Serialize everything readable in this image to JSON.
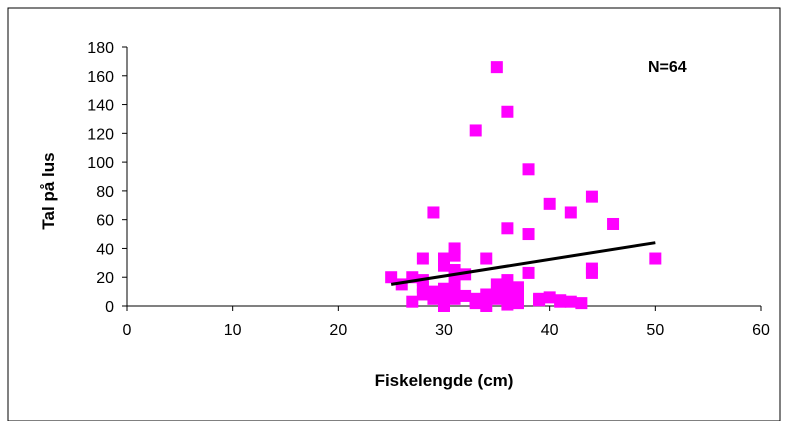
{
  "chart_data": {
    "type": "scatter",
    "xlabel": "Fiskelengde (cm)",
    "ylabel": "Tal på lus",
    "annotation": "N=64",
    "xlim": [
      0,
      60
    ],
    "ylim": [
      0,
      180
    ],
    "x_ticks": [
      0,
      10,
      20,
      30,
      40,
      50,
      60
    ],
    "y_ticks": [
      0,
      20,
      40,
      60,
      80,
      100,
      120,
      140,
      160,
      180
    ],
    "grid": false,
    "legend": "none",
    "marker_color": "#FF00FF",
    "trend_color": "#000000",
    "points": [
      [
        25,
        20
      ],
      [
        26,
        15
      ],
      [
        27,
        20
      ],
      [
        27,
        3
      ],
      [
        28,
        33
      ],
      [
        28,
        13
      ],
      [
        28,
        8
      ],
      [
        28,
        18
      ],
      [
        29,
        65
      ],
      [
        29,
        5
      ],
      [
        29,
        10
      ],
      [
        30,
        33
      ],
      [
        30,
        28
      ],
      [
        30,
        12
      ],
      [
        30,
        7
      ],
      [
        30,
        0
      ],
      [
        31,
        40
      ],
      [
        31,
        35
      ],
      [
        31,
        25
      ],
      [
        31,
        18
      ],
      [
        31,
        10
      ],
      [
        31,
        5
      ],
      [
        32,
        22
      ],
      [
        32,
        7
      ],
      [
        33,
        122
      ],
      [
        33,
        5
      ],
      [
        33,
        2
      ],
      [
        34,
        33
      ],
      [
        34,
        8
      ],
      [
        34,
        4
      ],
      [
        34,
        0
      ],
      [
        35,
        166
      ],
      [
        35,
        15
      ],
      [
        35,
        8
      ],
      [
        35,
        5
      ],
      [
        36,
        135
      ],
      [
        36,
        54
      ],
      [
        36,
        18
      ],
      [
        36,
        12
      ],
      [
        36,
        5
      ],
      [
        36,
        1
      ],
      [
        37,
        13
      ],
      [
        37,
        10
      ],
      [
        37,
        6
      ],
      [
        37,
        3
      ],
      [
        38,
        95
      ],
      [
        38,
        50
      ],
      [
        38,
        23
      ],
      [
        39,
        5
      ],
      [
        40,
        71
      ],
      [
        40,
        6
      ],
      [
        41,
        4
      ],
      [
        42,
        65
      ],
      [
        42,
        3
      ],
      [
        43,
        2
      ],
      [
        44,
        76
      ],
      [
        44,
        26
      ],
      [
        44,
        23
      ],
      [
        46,
        57
      ],
      [
        50,
        33
      ],
      [
        39,
        4
      ],
      [
        41,
        3
      ],
      [
        37,
        2
      ],
      [
        33,
        3
      ]
    ],
    "trendline": {
      "x": [
        25,
        50
      ],
      "y": [
        15,
        44
      ]
    }
  }
}
